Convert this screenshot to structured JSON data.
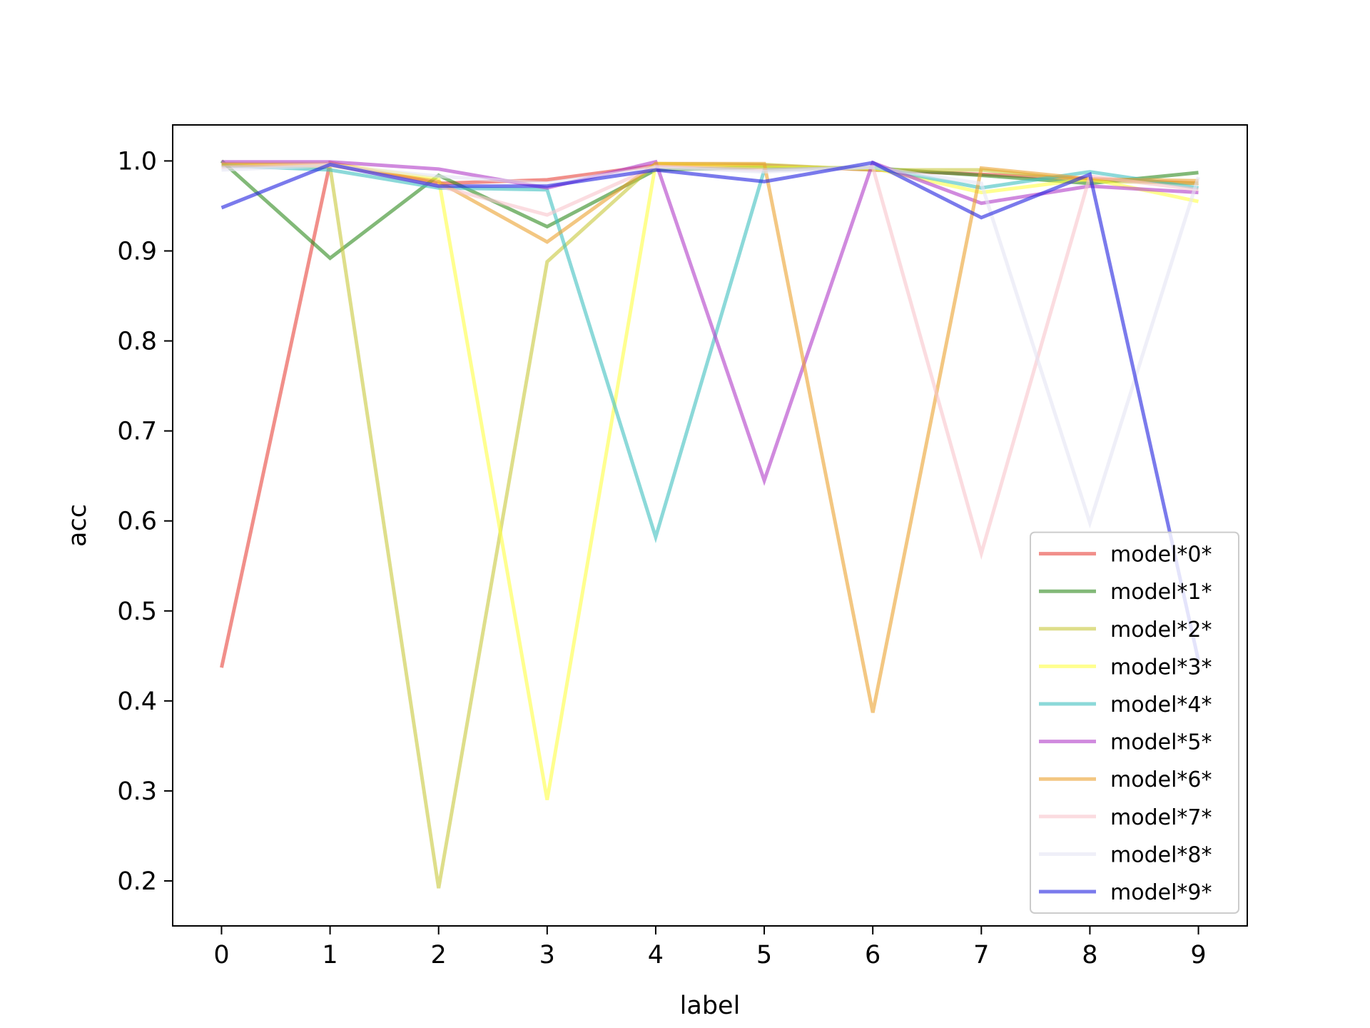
{
  "chart_data": {
    "type": "line",
    "xlabel": "label",
    "ylabel": "acc",
    "x": [
      0,
      1,
      2,
      3,
      4,
      5,
      6,
      7,
      8,
      9
    ],
    "xlim": [
      -0.45,
      9.45
    ],
    "ylim": [
      0.15,
      1.04
    ],
    "xticks": [
      "0",
      "1",
      "2",
      "3",
      "4",
      "5",
      "6",
      "7",
      "8",
      "9"
    ],
    "yticks": [
      "0.2",
      "0.3",
      "0.4",
      "0.5",
      "0.6",
      "0.7",
      "0.8",
      "0.9",
      "1.0"
    ],
    "grid": false,
    "legend_position": "lower-right",
    "series": [
      {
        "name": "model*0*",
        "color": "#e8453c",
        "values": [
          0.437,
          0.998,
          0.975,
          0.979,
          0.995,
          0.995,
          0.99,
          0.985,
          0.98,
          0.975
        ]
      },
      {
        "name": "model*1*",
        "color": "#2e8b1e",
        "values": [
          1.0,
          0.892,
          0.984,
          0.927,
          0.99,
          0.993,
          0.992,
          0.984,
          0.975,
          0.987
        ]
      },
      {
        "name": "model*2*",
        "color": "#c8c83c",
        "values": [
          0.997,
          0.993,
          0.192,
          0.888,
          0.997,
          0.996,
          0.99,
          0.99,
          0.978,
          0.975
        ]
      },
      {
        "name": "model*3*",
        "color": "#ffff44",
        "values": [
          0.997,
          0.997,
          0.98,
          0.29,
          0.997,
          0.993,
          0.992,
          0.965,
          0.98,
          0.955
        ]
      },
      {
        "name": "model*4*",
        "color": "#3fbfbf",
        "values": [
          0.995,
          0.99,
          0.97,
          0.968,
          0.582,
          0.99,
          0.993,
          0.97,
          0.988,
          0.97
        ]
      },
      {
        "name": "model*5*",
        "color": "#b03cc8",
        "values": [
          0.999,
          0.999,
          0.991,
          0.97,
          0.999,
          0.645,
          0.998,
          0.953,
          0.972,
          0.965
        ]
      },
      {
        "name": "model*6*",
        "color": "#eba12e",
        "values": [
          0.996,
          0.995,
          0.977,
          0.91,
          0.997,
          0.997,
          0.387,
          0.992,
          0.98,
          0.978
        ]
      },
      {
        "name": "model*7*",
        "color": "#f8c4cc",
        "values": [
          0.993,
          0.996,
          0.972,
          0.94,
          0.994,
          0.99,
          0.993,
          0.564,
          0.983,
          0.968
        ]
      },
      {
        "name": "model*8*",
        "color": "#e4e4f4",
        "values": [
          0.99,
          0.995,
          0.983,
          0.975,
          0.993,
          0.988,
          0.993,
          0.975,
          0.598,
          0.982
        ]
      },
      {
        "name": "model*9*",
        "color": "#2222e0",
        "values": [
          0.948,
          0.996,
          0.972,
          0.972,
          0.99,
          0.977,
          0.998,
          0.937,
          0.985,
          0.445
        ]
      }
    ]
  }
}
